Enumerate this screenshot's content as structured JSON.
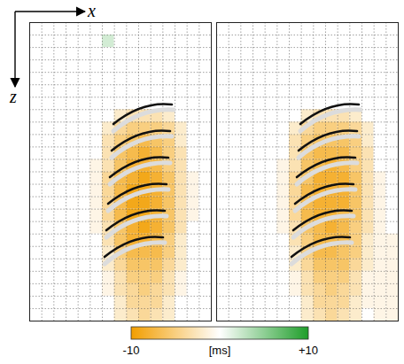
{
  "chart_data": {
    "type": "heatmap",
    "xlabel": "x",
    "ylabel": "z",
    "xlim": [
      0,
      15
    ],
    "ylim": [
      0,
      24
    ],
    "xticks": [
      0,
      1,
      2,
      3,
      4,
      5,
      6,
      7,
      8,
      9,
      10,
      11,
      12,
      13,
      14,
      15
    ],
    "yticks": [
      0,
      1,
      2,
      3,
      4,
      5,
      6,
      7,
      8,
      9,
      10,
      11,
      12,
      13,
      14,
      15,
      16,
      17,
      18,
      19,
      20,
      21,
      22,
      23,
      24
    ],
    "grid": true,
    "tick_labels": false,
    "panels": [
      {
        "cells": [
          [
            0,
            0,
            0,
            0,
            0,
            0,
            0,
            0,
            0,
            0,
            0,
            0,
            0,
            0,
            0
          ],
          [
            0,
            0,
            0,
            0,
            0,
            0,
            2,
            0,
            0,
            0,
            0,
            0,
            0,
            0,
            0
          ],
          [
            0,
            0,
            0,
            0,
            0,
            0,
            0,
            0,
            0,
            0,
            0,
            0,
            0,
            0,
            0
          ],
          [
            0,
            0,
            0,
            0,
            0,
            0,
            0,
            0,
            0,
            0,
            0,
            0,
            0,
            0,
            0
          ],
          [
            0,
            0,
            0,
            0,
            0,
            0,
            0,
            0,
            0,
            0,
            0,
            0,
            0,
            0,
            0
          ],
          [
            0,
            0,
            0,
            0,
            0,
            0,
            0,
            0,
            0,
            0,
            0,
            0,
            0,
            0,
            0
          ],
          [
            0,
            0,
            0,
            0,
            0,
            0,
            0,
            0,
            0,
            0,
            0,
            0,
            0,
            0,
            0
          ],
          [
            0,
            0,
            0,
            0,
            0,
            0,
            0,
            -2,
            -3,
            -3,
            -3,
            -2,
            0,
            0,
            0
          ],
          [
            0,
            0,
            0,
            0,
            0,
            0,
            -2,
            -4,
            -5,
            -5,
            -5,
            -4,
            -2,
            0,
            0
          ],
          [
            0,
            0,
            0,
            0,
            0,
            0,
            -3,
            -5,
            -6,
            -7,
            -6,
            -5,
            -2,
            0,
            0
          ],
          [
            0,
            0,
            0,
            0,
            0,
            0,
            -3,
            -6,
            -7,
            -8,
            -7,
            -5,
            -3,
            0,
            0
          ],
          [
            0,
            0,
            0,
            0,
            0,
            -1,
            -3,
            -6,
            -8,
            -8,
            -7,
            -5,
            -3,
            0,
            0
          ],
          [
            0,
            0,
            0,
            0,
            0,
            -1,
            -4,
            -7,
            -8,
            -9,
            -8,
            -6,
            -3,
            -1,
            0
          ],
          [
            0,
            0,
            0,
            0,
            0,
            -1,
            -4,
            -7,
            -9,
            -9,
            -8,
            -6,
            -3,
            -1,
            0
          ],
          [
            0,
            0,
            0,
            0,
            0,
            -1,
            -4,
            -7,
            -9,
            -9,
            -8,
            -6,
            -3,
            -1,
            0
          ],
          [
            0,
            0,
            0,
            0,
            0,
            -1,
            -4,
            -7,
            -9,
            -9,
            -8,
            -6,
            -3,
            -1,
            0
          ],
          [
            0,
            0,
            0,
            0,
            0,
            -1,
            -3,
            -6,
            -8,
            -9,
            -8,
            -6,
            -3,
            0,
            0
          ],
          [
            0,
            0,
            0,
            0,
            0,
            0,
            -3,
            -6,
            -8,
            -8,
            -7,
            -5,
            -2,
            0,
            0
          ],
          [
            0,
            0,
            0,
            0,
            0,
            0,
            -2,
            -5,
            -7,
            -7,
            -7,
            -5,
            -2,
            0,
            0
          ],
          [
            0,
            0,
            0,
            0,
            0,
            0,
            -2,
            -4,
            -6,
            -6,
            -6,
            -4,
            -2,
            0,
            0
          ],
          [
            0,
            0,
            0,
            0,
            0,
            0,
            -1,
            -3,
            -5,
            -5,
            -5,
            -3,
            -1,
            0,
            0
          ],
          [
            0,
            0,
            0,
            0,
            0,
            0,
            -1,
            -3,
            -4,
            -5,
            -4,
            -3,
            -1,
            0,
            0
          ],
          [
            0,
            0,
            0,
            0,
            0,
            0,
            0,
            -2,
            -4,
            -4,
            -4,
            -2,
            0,
            0,
            0
          ],
          [
            0,
            0,
            0,
            0,
            0,
            0,
            0,
            -2,
            -3,
            -4,
            -3,
            -2,
            0,
            0,
            0
          ]
        ]
      },
      {
        "cells": [
          [
            0,
            0,
            0,
            0,
            0,
            0,
            0,
            0,
            0,
            0,
            0,
            0,
            0,
            0,
            0
          ],
          [
            0,
            0,
            0,
            0,
            0,
            0,
            0,
            0,
            0,
            0,
            0,
            0,
            0,
            0,
            0
          ],
          [
            0,
            0,
            0,
            0,
            0,
            0,
            0,
            0,
            0,
            0,
            0,
            0,
            0,
            0,
            0
          ],
          [
            0,
            0,
            0,
            0,
            0,
            0,
            0,
            0,
            0,
            0,
            0,
            0,
            0,
            0,
            0
          ],
          [
            0,
            0,
            0,
            0,
            0,
            0,
            0,
            0,
            0,
            0,
            0,
            0,
            0,
            0,
            0
          ],
          [
            0,
            0,
            0,
            0,
            0,
            0,
            0,
            0,
            0,
            0,
            0,
            0,
            0,
            0,
            0
          ],
          [
            0,
            0,
            0,
            0,
            0,
            0,
            0,
            0,
            0,
            0,
            0,
            0,
            0,
            0,
            0
          ],
          [
            0,
            0,
            0,
            0,
            0,
            0,
            0,
            -2,
            -3,
            -3,
            -3,
            -2,
            0,
            0,
            0
          ],
          [
            0,
            0,
            0,
            0,
            0,
            0,
            -2,
            -4,
            -5,
            -5,
            -5,
            -4,
            -2,
            0,
            0
          ],
          [
            0,
            0,
            0,
            0,
            0,
            0,
            -3,
            -5,
            -6,
            -6,
            -6,
            -5,
            -2,
            0,
            0
          ],
          [
            0,
            0,
            0,
            0,
            0,
            0,
            -3,
            -6,
            -7,
            -7,
            -7,
            -5,
            -3,
            0,
            0
          ],
          [
            0,
            0,
            0,
            0,
            0,
            -1,
            -3,
            -6,
            -7,
            -8,
            -7,
            -5,
            -3,
            0,
            0
          ],
          [
            0,
            0,
            0,
            0,
            0,
            -1,
            -4,
            -6,
            -8,
            -8,
            -8,
            -6,
            -3,
            -1,
            0
          ],
          [
            0,
            0,
            0,
            0,
            0,
            -1,
            -4,
            -7,
            -8,
            -8,
            -8,
            -6,
            -3,
            -1,
            0
          ],
          [
            0,
            0,
            0,
            0,
            0,
            -1,
            -4,
            -7,
            -8,
            -8,
            -8,
            -6,
            -3,
            -1,
            0
          ],
          [
            0,
            0,
            0,
            0,
            0,
            -1,
            -4,
            -7,
            -8,
            -8,
            -7,
            -6,
            -3,
            -1,
            0
          ],
          [
            0,
            0,
            0,
            0,
            0,
            -1,
            -3,
            -6,
            -7,
            -8,
            -7,
            -5,
            -3,
            -1,
            0
          ],
          [
            0,
            0,
            0,
            0,
            0,
            0,
            -3,
            -5,
            -7,
            -7,
            -7,
            -5,
            -2,
            -1,
            -1
          ],
          [
            0,
            0,
            0,
            0,
            0,
            0,
            -2,
            -5,
            -7,
            -7,
            -6,
            -5,
            -2,
            -1,
            -1
          ],
          [
            0,
            0,
            0,
            0,
            0,
            0,
            -2,
            -4,
            -6,
            -6,
            -6,
            -4,
            -2,
            -1,
            -1
          ],
          [
            0,
            0,
            0,
            0,
            0,
            0,
            -1,
            -3,
            -5,
            -5,
            -5,
            -3,
            -1,
            -1,
            -1
          ],
          [
            0,
            0,
            0,
            0,
            0,
            0,
            -1,
            -3,
            -4,
            -5,
            -4,
            -3,
            -1,
            -1,
            -1
          ],
          [
            0,
            0,
            0,
            0,
            0,
            0,
            0,
            -2,
            -4,
            -4,
            -4,
            -2,
            -1,
            -1,
            -1
          ],
          [
            0,
            0,
            0,
            0,
            0,
            0,
            0,
            -2,
            -3,
            -4,
            -3,
            -2,
            0,
            -1,
            -1
          ]
        ]
      }
    ],
    "colorbar": {
      "range": [
        -10,
        10
      ],
      "ticks": [
        -10,
        {
          "value": 10,
          "label": "+10"
        }
      ],
      "label": "[ms]"
    }
  }
}
